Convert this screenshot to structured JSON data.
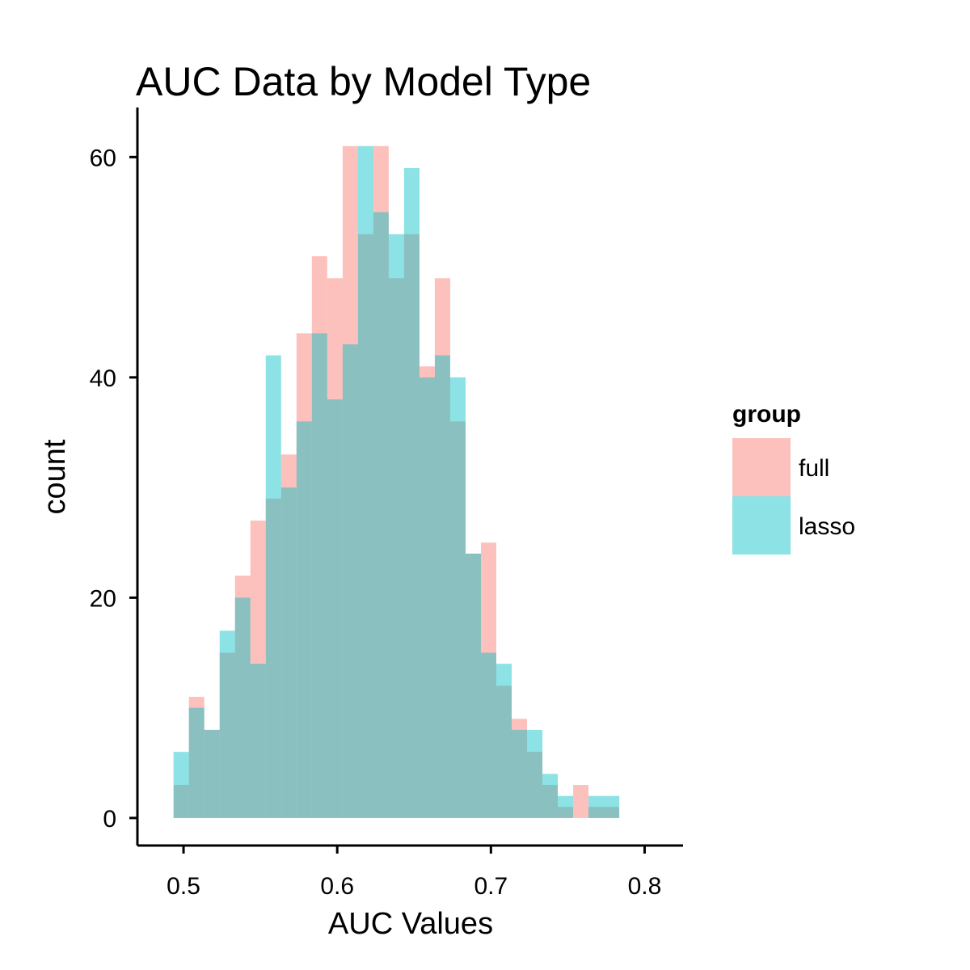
{
  "chart_data": {
    "type": "bar",
    "title": "AUC Data by Model Type",
    "xlabel": "AUC Values",
    "ylabel": "count",
    "xlim": [
      0.47,
      0.825
    ],
    "ylim": [
      -2.5,
      64.5
    ],
    "x_ticks": [
      0.5,
      0.6,
      0.7,
      0.8
    ],
    "x_tick_labels": [
      "0.5",
      "0.6",
      "0.7",
      "0.8"
    ],
    "y_ticks": [
      0,
      20,
      40,
      60
    ],
    "y_tick_labels": [
      "0",
      "20",
      "40",
      "60"
    ],
    "bin_start": 0.4935,
    "bin_width": 0.01,
    "grid": false,
    "legend": {
      "title": "group",
      "placement": "right"
    },
    "series": [
      {
        "name": "full",
        "color": "#F8766D",
        "values": [
          3,
          11,
          8,
          15,
          22,
          27,
          29,
          33,
          44,
          51,
          49,
          61,
          53,
          61,
          49,
          53,
          41,
          49,
          36,
          24,
          25,
          12,
          9,
          6,
          3,
          1,
          3,
          1,
          1
        ]
      },
      {
        "name": "lasso",
        "color": "#00BFC4",
        "values": [
          6,
          10,
          8,
          17,
          20,
          14,
          42,
          30,
          36,
          44,
          38,
          43,
          61,
          55,
          53,
          59,
          40,
          42,
          40,
          24,
          15,
          14,
          8,
          8,
          4,
          2,
          0,
          2,
          2
        ]
      }
    ],
    "fill_opacity": 0.45
  }
}
